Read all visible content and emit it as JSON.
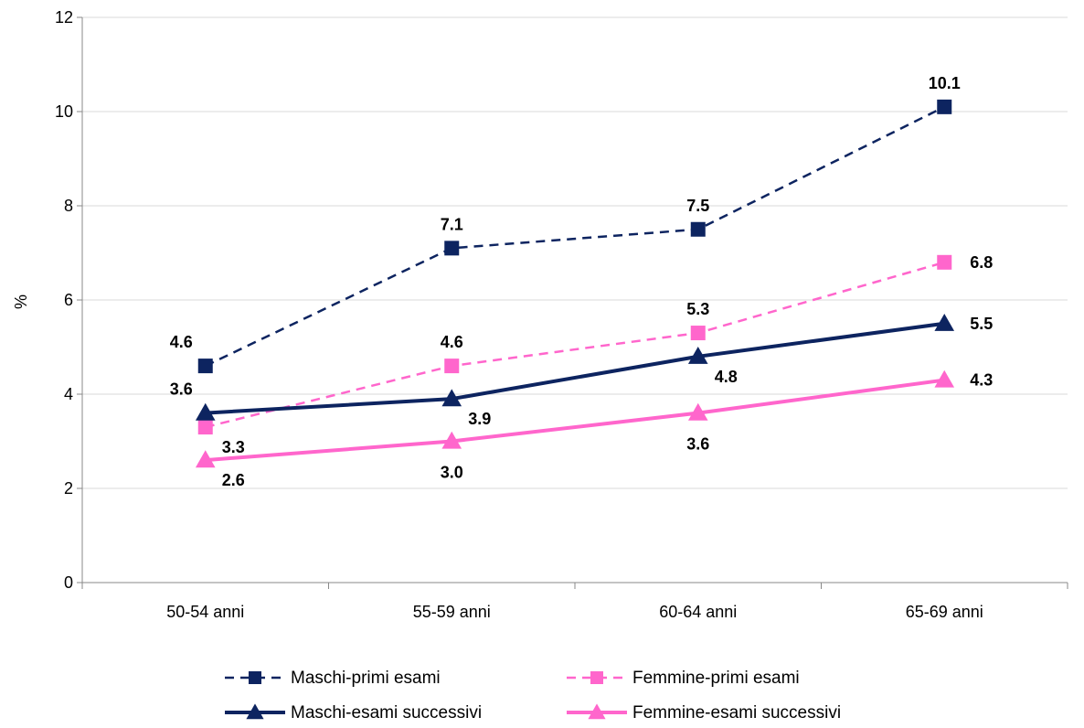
{
  "chart_data": {
    "type": "line",
    "title": "",
    "xlabel": "",
    "ylabel": "%",
    "categories": [
      "50-54 anni",
      "55-59 anni",
      "60-64 anni",
      "65-69 anni"
    ],
    "ylim": [
      0,
      12
    ],
    "yticks": [
      "0",
      "2",
      "4",
      "6",
      "8",
      "10",
      "12"
    ],
    "grid": true,
    "legend_position": "bottom",
    "series": [
      {
        "name": "Maschi-primi esami",
        "values": [
          4.6,
          7.1,
          7.5,
          10.1
        ],
        "labels": [
          "4.6",
          "7.1",
          "7.5",
          "10.1"
        ],
        "color": "#0d2460",
        "dash": true,
        "marker": "square",
        "label_side": [
          "left",
          "above",
          "above",
          "above"
        ]
      },
      {
        "name": "Femmine-primi esami",
        "values": [
          3.3,
          4.6,
          5.3,
          6.8
        ],
        "labels": [
          "3.3",
          "4.6",
          "5.3",
          "6.8"
        ],
        "color": "#ff66cc",
        "dash": true,
        "marker": "square",
        "label_side": [
          "below-right",
          "above",
          "above",
          "right"
        ]
      },
      {
        "name": "Maschi-esami successivi",
        "values": [
          3.6,
          3.9,
          4.8,
          5.5
        ],
        "labels": [
          "3.6",
          "3.9",
          "4.8",
          "5.5"
        ],
        "color": "#0d2460",
        "dash": false,
        "marker": "triangle",
        "label_side": [
          "left",
          "below-right",
          "below-right",
          "right"
        ]
      },
      {
        "name": "Femmine-esami successivi",
        "values": [
          2.6,
          3.0,
          3.6,
          4.3
        ],
        "labels": [
          "2.6",
          "3.0",
          "3.6",
          "4.3"
        ],
        "color": "#ff66cc",
        "dash": false,
        "marker": "triangle",
        "label_side": [
          "below-right",
          "below",
          "below",
          "right"
        ]
      }
    ]
  }
}
